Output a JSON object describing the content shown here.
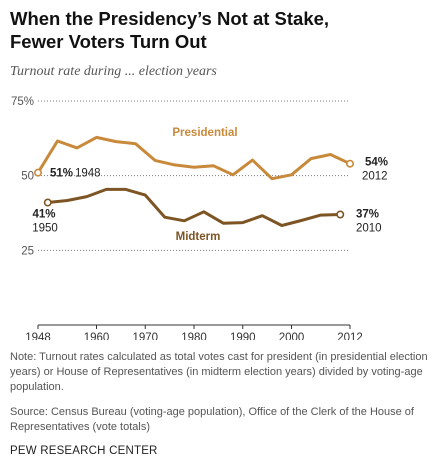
{
  "header": {
    "title_line1": "When the Presidency’s Not at Stake,",
    "title_line2": "Fewer Voters Turn Out",
    "subtitle": "Turnout rate during ... election years"
  },
  "chart_data": {
    "type": "line",
    "title": "When the Presidency’s Not at Stake, Fewer Voters Turn Out",
    "subtitle": "Turnout rate during ... election years",
    "xlabel": "",
    "ylabel": "",
    "xlim": [
      1948,
      2012
    ],
    "ylim": [
      0,
      75
    ],
    "x_ticks": [
      1948,
      1960,
      1970,
      1980,
      1990,
      2000,
      2012
    ],
    "y_ticks": [
      {
        "value": 75,
        "label": "75%"
      },
      {
        "value": 50,
        "label": "50"
      },
      {
        "value": 25,
        "label": "25"
      }
    ],
    "grid": "dotted horizontal",
    "series": [
      {
        "name": "Presidential",
        "color": "#c8893a",
        "x": [
          1948,
          1952,
          1956,
          1960,
          1964,
          1968,
          1972,
          1976,
          1980,
          1984,
          1988,
          1992,
          1996,
          2000,
          2004,
          2008,
          2012
        ],
        "values": [
          51,
          61.6,
          59.3,
          62.8,
          61.4,
          60.7,
          55.1,
          53.6,
          52.8,
          53.3,
          50.3,
          55.2,
          49,
          50.3,
          55.7,
          57.1,
          54
        ],
        "start_label": {
          "value": "51%",
          "year": "1948"
        },
        "end_label": {
          "value": "54%",
          "year": "2012"
        }
      },
      {
        "name": "Midterm",
        "color": "#7d5524",
        "x": [
          1950,
          1954,
          1958,
          1962,
          1966,
          1970,
          1974,
          1978,
          1982,
          1986,
          1990,
          1994,
          1998,
          2002,
          2006,
          2010
        ],
        "values": [
          41,
          41.7,
          43,
          45.4,
          45.4,
          43.5,
          36.1,
          34.9,
          37.9,
          34.1,
          34.3,
          36.6,
          33.3,
          35,
          36.8,
          37
        ],
        "start_label": {
          "value": "41%",
          "year": "1950"
        },
        "end_label": {
          "value": "37%",
          "year": "2010"
        }
      }
    ]
  },
  "notes": {
    "note": "Note: Turnout rates calculated as total votes cast for president (in presidential election years) or House of Representatives (in midterm election years) divided by voting-age population.",
    "source": "Source: Census Bureau (voting-age population), Office of the Clerk of the House of Representatives (vote totals)",
    "org": "PEW RESEARCH CENTER"
  }
}
